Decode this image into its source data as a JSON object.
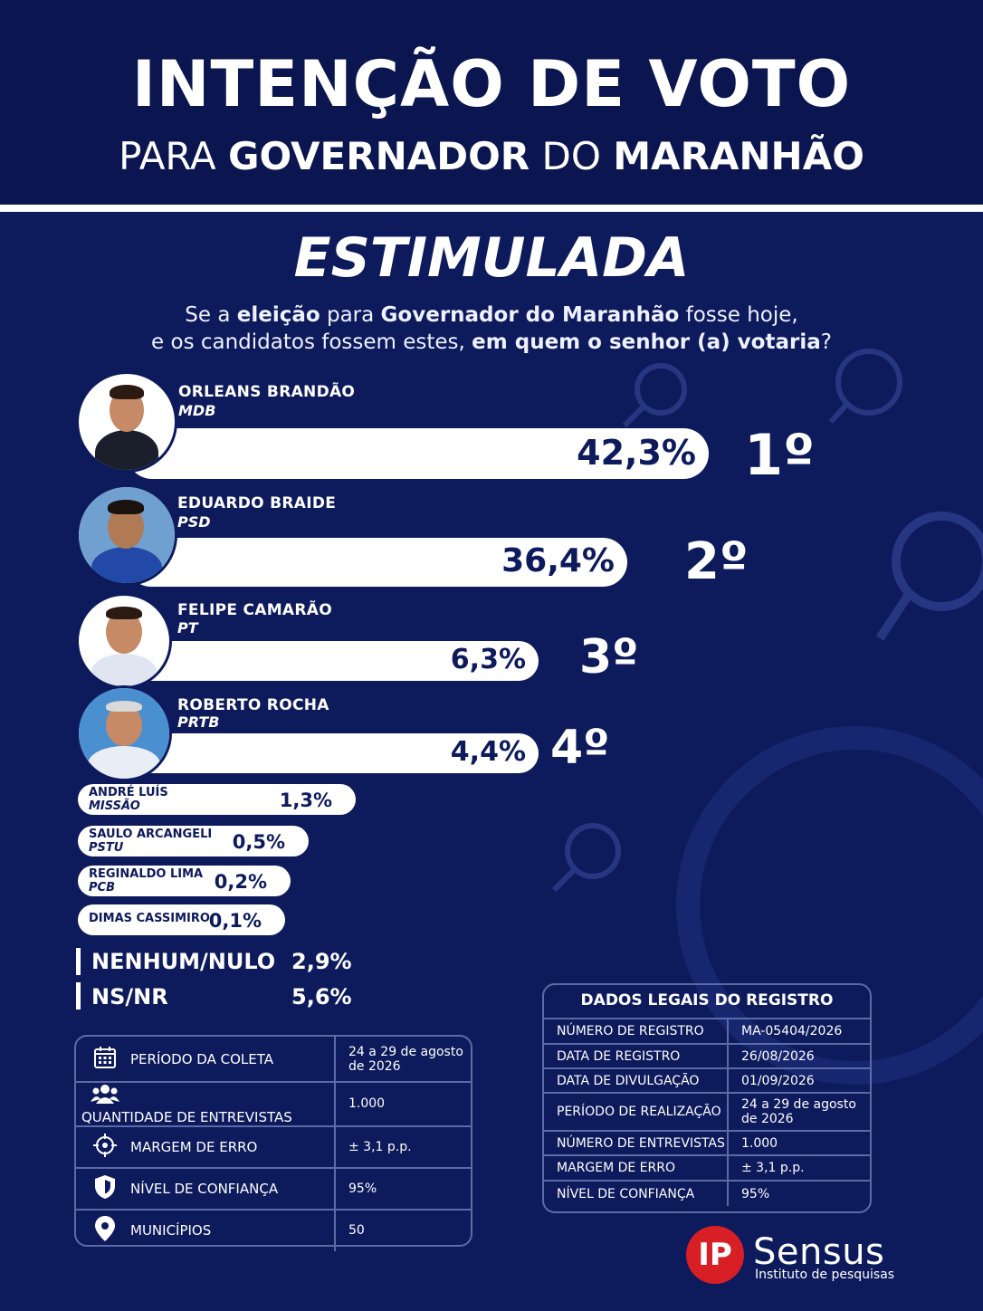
{
  "header": {
    "title": "INTENÇÃO DE VOTO",
    "subtitle": {
      "p1": "PARA ",
      "p2": "GOVERNADOR",
      "p3": " DO ",
      "p4": "MARANHÃO"
    }
  },
  "survey_type": "ESTIMULADA",
  "question": {
    "l1a": "Se a ",
    "l1b": "eleição",
    "l1c": " para ",
    "l1d": "Governador do Maranhão",
    "l1e": " fosse hoje,",
    "l2a": "e os candidatos fossem estes, ",
    "l2b": "em quem o senhor (a) votaria",
    "l2c": "?"
  },
  "colors": {
    "background": "#0d1a5c",
    "header": "#0b1650",
    "bar": "#ffffff",
    "accent_red": "#d81f26"
  },
  "chart_data": {
    "type": "bar",
    "categories": [
      "ORLEANS BRANDÃO",
      "EDUARDO BRAIDE",
      "FELIPE CAMARÃO",
      "ROBERTO ROCHA",
      "ANDRÉ LUÍS",
      "SAULO ARCANGELI",
      "REGINALDO LIMA",
      "DIMAS CASSIMIRO"
    ],
    "parties": [
      "MDB",
      "PSD",
      "PT",
      "PRTB",
      "MISSÃO",
      "PSTU",
      "PCB",
      ""
    ],
    "values": [
      42.3,
      36.4,
      6.3,
      4.4,
      1.3,
      0.5,
      0.2,
      0.1
    ],
    "value_labels": [
      "42,3%",
      "36,4%",
      "6,3%",
      "4,4%",
      "1,3%",
      "0,5%",
      "0,2%",
      "0,1%"
    ],
    "ranks": [
      "1º",
      "2º",
      "3º",
      "4º"
    ],
    "others": [
      {
        "label": "NENHUM/NULO",
        "value": 2.9,
        "value_label": "2,9%"
      },
      {
        "label": "NS/NR",
        "value": 5.6,
        "value_label": "5,6%"
      }
    ]
  },
  "methodology": [
    {
      "icon": "calendar-icon",
      "label": "PERÍODO DA COLETA",
      "value": "24 a 29 de agosto de 2026"
    },
    {
      "icon": "people-icon",
      "label": "QUANTIDADE DE ENTREVISTAS",
      "value": "1.000"
    },
    {
      "icon": "crosshair-icon",
      "label": "MARGEM DE ERRO",
      "value": "± 3,1 p.p."
    },
    {
      "icon": "shield-icon",
      "label": "NÍVEL DE CONFIANÇA",
      "value": "95%"
    },
    {
      "icon": "location-pin-icon",
      "label": "MUNICÍPIOS",
      "value": "50"
    }
  ],
  "legal": {
    "title": "DADOS LEGAIS DO REGISTRO",
    "rows": [
      {
        "k": "NÚMERO DE REGISTRO",
        "v": "MA-05404/2026"
      },
      {
        "k": "DATA DE REGISTRO",
        "v": "26/08/2026"
      },
      {
        "k": "DATA DE DIVULGAÇÃO",
        "v": "01/09/2026"
      },
      {
        "k": "PERÍODO DE REALIZAÇÃO",
        "v": "24 a 29 de agosto de 2026"
      },
      {
        "k": "NÚMERO DE ENTREVISTAS",
        "v": "1.000"
      },
      {
        "k": "MARGEM DE ERRO",
        "v": "± 3,1 p.p."
      },
      {
        "k": "NÍVEL DE CONFIANÇA",
        "v": "95%"
      }
    ]
  },
  "logo": {
    "ip": "IP",
    "name": "Sensus",
    "tagline": "Instituto de pesquisas"
  }
}
